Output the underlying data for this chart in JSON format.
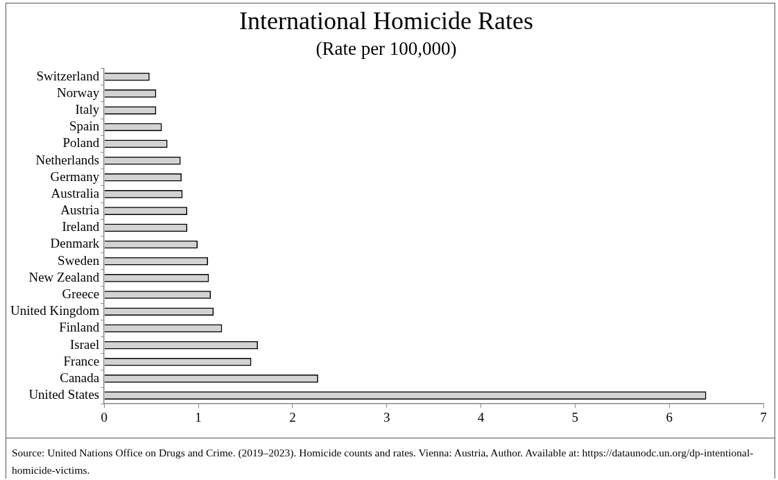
{
  "chart_data": {
    "type": "bar",
    "orientation": "horizontal",
    "title": "International Homicide Rates",
    "subtitle": "(Rate per 100,000)",
    "categories": [
      "Switzerland",
      "Norway",
      "Italy",
      "Spain",
      "Poland",
      "Netherlands",
      "Germany",
      "Australia",
      "Austria",
      "Ireland",
      "Denmark",
      "Sweden",
      "New Zealand",
      "Greece",
      "United Kingdom",
      "Finland",
      "Israel",
      "France",
      "Canada",
      "United States"
    ],
    "values": [
      0.48,
      0.55,
      0.55,
      0.61,
      0.67,
      0.81,
      0.82,
      0.83,
      0.88,
      0.88,
      0.99,
      1.1,
      1.11,
      1.13,
      1.16,
      1.25,
      1.63,
      1.56,
      2.27,
      6.39
    ],
    "color": "#d3d3d3",
    "xlim": [
      0,
      7
    ],
    "xticks": [
      0,
      1,
      2,
      3,
      4,
      5,
      6,
      7
    ],
    "grid": false,
    "legend": false,
    "annotations": [
      "Source: United Nations Office on Drugs and Crime. (2019–2023). Homicide counts and rates. Vienna: Austria, Author. Available at: https://dataunodc.un.org/dp-intentional-homicide-victims."
    ]
  }
}
